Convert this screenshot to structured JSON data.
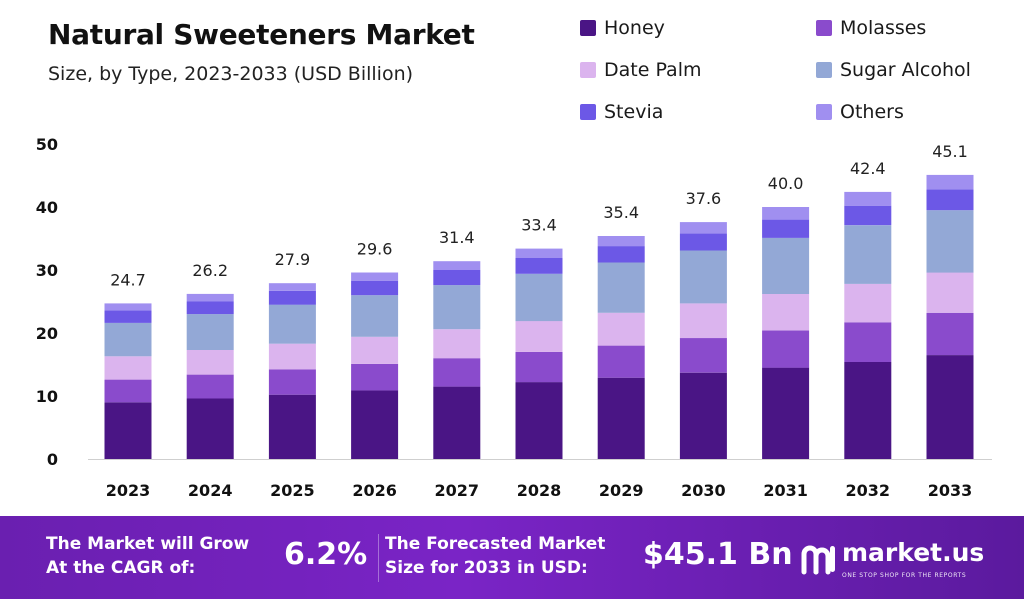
{
  "chart_data": {
    "type": "bar",
    "stacked": true,
    "title": "Natural Sweeteners Market",
    "subtitle": "Size, by Type, 2023-2033 (USD Billion)",
    "categories": [
      "2023",
      "2024",
      "2025",
      "2026",
      "2027",
      "2028",
      "2029",
      "2030",
      "2031",
      "2032",
      "2033"
    ],
    "totals": [
      "24.7",
      "26.2",
      "27.9",
      "29.6",
      "31.4",
      "33.4",
      "35.4",
      "37.6",
      "40.0",
      "42.4",
      "45.1"
    ],
    "series": [
      {
        "name": "Honey",
        "color": "#4a1585",
        "values": [
          9.0,
          9.6,
          10.2,
          10.9,
          11.5,
          12.2,
          12.9,
          13.7,
          14.5,
          15.4,
          16.5
        ]
      },
      {
        "name": "Molasses",
        "color": "#8a4bcc",
        "values": [
          3.6,
          3.8,
          4.0,
          4.2,
          4.5,
          4.8,
          5.1,
          5.5,
          5.9,
          6.3,
          6.7
        ]
      },
      {
        "name": "Date Palm",
        "color": "#dbb4ee",
        "values": [
          3.7,
          3.9,
          4.1,
          4.3,
          4.6,
          4.9,
          5.2,
          5.5,
          5.8,
          6.1,
          6.4
        ]
      },
      {
        "name": "Sugar Alcohol",
        "color": "#93a8d6",
        "values": [
          5.3,
          5.7,
          6.2,
          6.6,
          7.0,
          7.5,
          8.0,
          8.4,
          8.9,
          9.3,
          9.9
        ]
      },
      {
        "name": "Stevia",
        "color": "#6c58e6",
        "values": [
          2.0,
          2.0,
          2.2,
          2.3,
          2.4,
          2.5,
          2.6,
          2.7,
          2.9,
          3.1,
          3.3
        ]
      },
      {
        "name": "Others",
        "color": "#a08ff0",
        "values": [
          1.1,
          1.2,
          1.2,
          1.3,
          1.4,
          1.5,
          1.6,
          1.8,
          2.0,
          2.2,
          2.3
        ]
      }
    ],
    "xlabel": "",
    "ylabel": "",
    "ylim": [
      0,
      50
    ],
    "yticks": [
      "0",
      "10",
      "20",
      "30",
      "40",
      "50"
    ],
    "grid": false,
    "legend_position": "top-right"
  },
  "footer": {
    "cagr_label_line1": "The Market will Grow",
    "cagr_label_line2": "At the CAGR of:",
    "cagr_value": "6.2%",
    "forecast_label_line1": "The Forecasted Market",
    "forecast_label_line2": "Size for 2033 in USD:",
    "forecast_value": "$45.1 Bn",
    "brand_name": "market.us",
    "brand_tagline": "ONE STOP SHOP FOR THE REPORTS",
    "background_color": "#6a1fb0"
  }
}
